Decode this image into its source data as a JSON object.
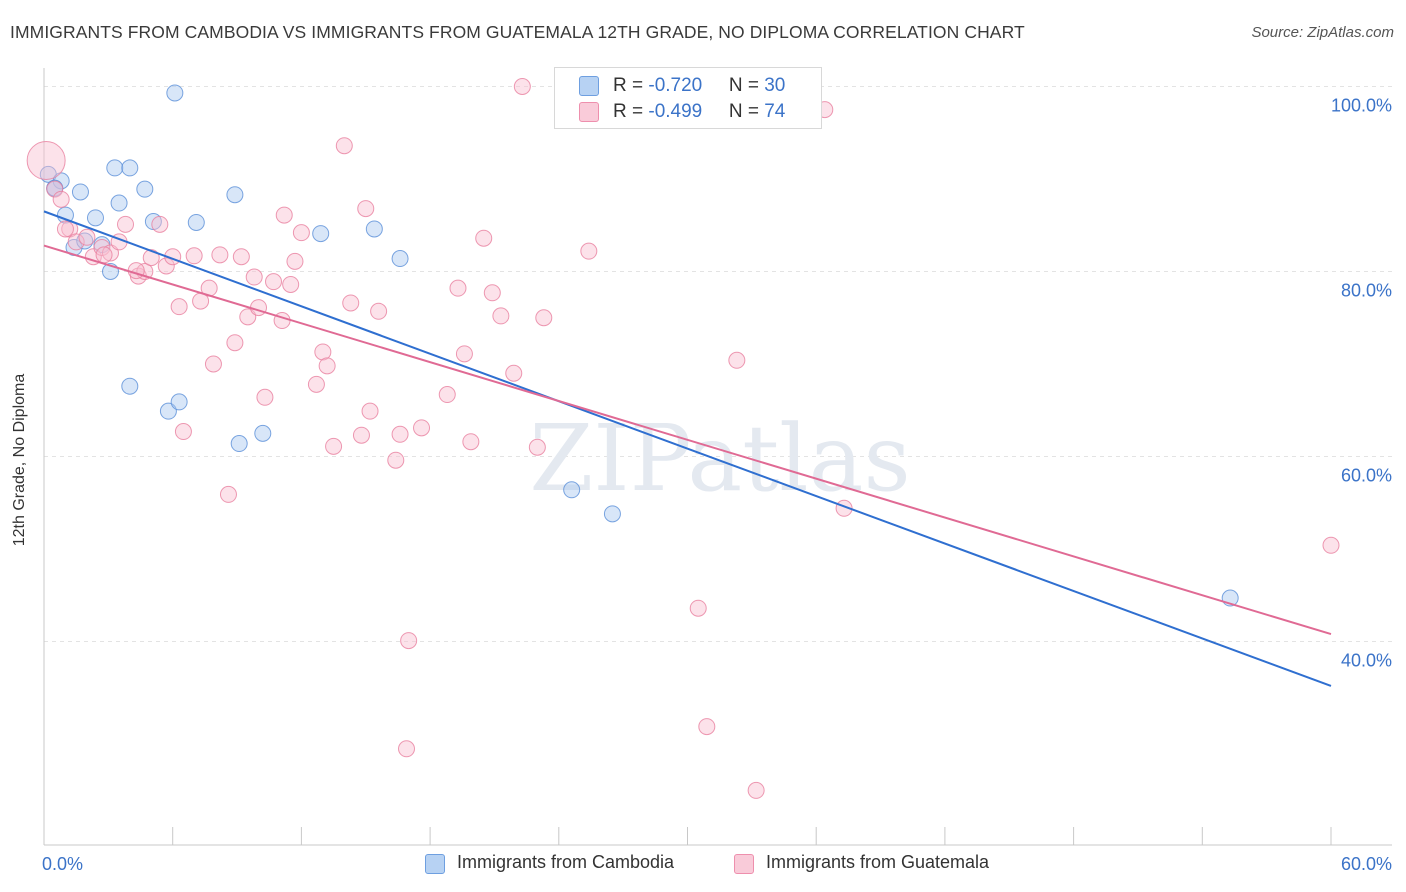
{
  "title": "IMMIGRANTS FROM CAMBODIA VS IMMIGRANTS FROM GUATEMALA 12TH GRADE, NO DIPLOMA CORRELATION CHART",
  "source": "Source: ZipAtlas.com",
  "watermark": "ZIPatlas",
  "legend": {
    "rows": [
      {
        "r_label": "R = ",
        "r_value": "-0.720",
        "n_label": "N = ",
        "n_value": "30",
        "color": "#a9c8f0",
        "stroke": "#6e9fe0"
      },
      {
        "r_label": "R = ",
        "r_value": "-0.499",
        "n_label": "N = ",
        "n_value": "74",
        "color": "#f8bfd0",
        "stroke": "#ee8fad"
      }
    ]
  },
  "chart_data": {
    "type": "scatter",
    "xlabel": "",
    "ylabel": "12th Grade, No Diploma",
    "xlim": [
      0,
      60
    ],
    "ylim": [
      18,
      102
    ],
    "x_ticks": [
      "0.0%",
      "60.0%"
    ],
    "y_ticks": [
      {
        "value": 100,
        "label": "100.0%"
      },
      {
        "value": 80,
        "label": "80.0%"
      },
      {
        "value": 60,
        "label": "60.0%"
      },
      {
        "value": 40,
        "label": "40.0%"
      }
    ],
    "grid": true,
    "legend_position": "bottom",
    "series": [
      {
        "name": "Immigrants from Cambodia",
        "color": "#a9c8f0",
        "stroke": "#5a8fd8",
        "line_color": "#2f6fd0",
        "trend": {
          "x": [
            0,
            60
          ],
          "y": [
            86.5,
            35.2
          ]
        },
        "points": [
          [
            0.2,
            90.5
          ],
          [
            0.5,
            89.0
          ],
          [
            0.8,
            89.8
          ],
          [
            1.0,
            86.1
          ],
          [
            1.7,
            88.6
          ],
          [
            2.4,
            85.8
          ],
          [
            1.4,
            82.6
          ],
          [
            1.9,
            83.3
          ],
          [
            2.7,
            82.9
          ],
          [
            3.1,
            80.0
          ],
          [
            3.3,
            91.2
          ],
          [
            4.0,
            91.2
          ],
          [
            3.5,
            87.4
          ],
          [
            4.7,
            88.9
          ],
          [
            5.1,
            85.4
          ],
          [
            6.1,
            99.3
          ],
          [
            7.1,
            85.3
          ],
          [
            8.9,
            88.3
          ],
          [
            12.9,
            84.1
          ],
          [
            15.4,
            84.6
          ],
          [
            16.6,
            81.4
          ],
          [
            4.0,
            67.6
          ],
          [
            5.8,
            64.9
          ],
          [
            6.3,
            65.9
          ],
          [
            9.1,
            61.4
          ],
          [
            10.2,
            62.5
          ],
          [
            24.6,
            56.4
          ],
          [
            26.5,
            53.8
          ],
          [
            55.3,
            44.7
          ],
          [
            0.5,
            89.0
          ]
        ]
      },
      {
        "name": "Immigrants from Guatemala",
        "color": "#f8bfd0",
        "stroke": "#e8809f",
        "line_color": "#e06a94",
        "trend": {
          "x": [
            0,
            60
          ],
          "y": [
            82.8,
            40.8
          ]
        },
        "points": [
          [
            0.1,
            92.0
          ],
          [
            0.5,
            88.9
          ],
          [
            0.8,
            87.8
          ],
          [
            1.2,
            84.6
          ],
          [
            1.5,
            83.2
          ],
          [
            2.0,
            83.7
          ],
          [
            2.3,
            81.6
          ],
          [
            2.7,
            82.6
          ],
          [
            3.1,
            82.0
          ],
          [
            3.5,
            83.2
          ],
          [
            3.8,
            85.1
          ],
          [
            4.4,
            79.5
          ],
          [
            4.7,
            80.0
          ],
          [
            5.0,
            81.5
          ],
          [
            5.4,
            85.1
          ],
          [
            5.7,
            80.6
          ],
          [
            6.0,
            81.6
          ],
          [
            6.3,
            76.2
          ],
          [
            6.5,
            62.7
          ],
          [
            7.0,
            81.7
          ],
          [
            7.3,
            76.8
          ],
          [
            7.7,
            78.2
          ],
          [
            7.9,
            70.0
          ],
          [
            8.2,
            81.8
          ],
          [
            8.6,
            55.9
          ],
          [
            8.9,
            72.3
          ],
          [
            9.2,
            81.6
          ],
          [
            9.5,
            75.1
          ],
          [
            9.8,
            79.4
          ],
          [
            10.0,
            76.1
          ],
          [
            10.3,
            66.4
          ],
          [
            10.7,
            78.9
          ],
          [
            11.1,
            74.7
          ],
          [
            11.2,
            86.1
          ],
          [
            11.5,
            78.6
          ],
          [
            11.7,
            81.1
          ],
          [
            12.0,
            84.2
          ],
          [
            12.7,
            67.8
          ],
          [
            13.0,
            71.3
          ],
          [
            13.2,
            69.8
          ],
          [
            13.5,
            61.1
          ],
          [
            14.0,
            93.6
          ],
          [
            14.3,
            76.6
          ],
          [
            14.8,
            62.3
          ],
          [
            15.0,
            86.8
          ],
          [
            15.2,
            64.9
          ],
          [
            15.6,
            75.7
          ],
          [
            16.4,
            59.6
          ],
          [
            16.6,
            62.4
          ],
          [
            17.0,
            40.1
          ],
          [
            16.9,
            28.4
          ],
          [
            17.6,
            63.1
          ],
          [
            18.8,
            66.7
          ],
          [
            19.3,
            78.2
          ],
          [
            19.6,
            71.1
          ],
          [
            19.9,
            61.6
          ],
          [
            20.5,
            83.6
          ],
          [
            20.9,
            77.7
          ],
          [
            21.3,
            75.2
          ],
          [
            21.9,
            69.0
          ],
          [
            22.3,
            100.0
          ],
          [
            23.3,
            75.0
          ],
          [
            23.0,
            61.0
          ],
          [
            25.4,
            82.2
          ],
          [
            30.5,
            43.6
          ],
          [
            30.9,
            30.8
          ],
          [
            32.3,
            70.4
          ],
          [
            33.2,
            23.9
          ],
          [
            36.4,
            97.5
          ],
          [
            37.3,
            54.4
          ],
          [
            60.0,
            50.4
          ],
          [
            2.8,
            81.8
          ],
          [
            1.0,
            84.6
          ],
          [
            4.3,
            80.1
          ]
        ]
      }
    ]
  }
}
